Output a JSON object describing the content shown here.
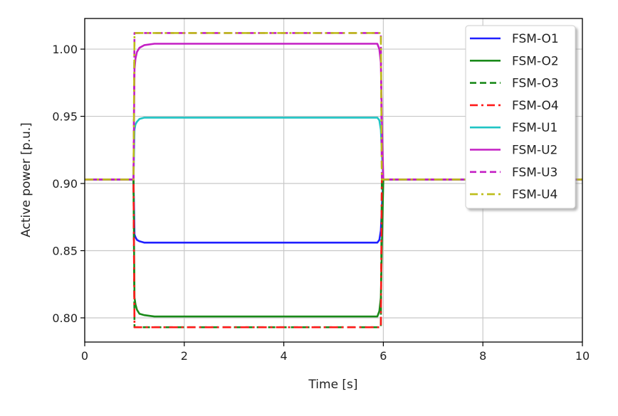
{
  "chart_data": {
    "type": "line",
    "title": "",
    "xlabel": "Time [s]",
    "ylabel": "Active power [p.u.]",
    "xlim": [
      0,
      10
    ],
    "ylim": [
      0.782,
      1.0228
    ],
    "xticks": [
      0,
      2,
      4,
      6,
      8,
      10
    ],
    "xtick_labels": [
      "0",
      "2",
      "4",
      "6",
      "8",
      "10"
    ],
    "yticks": [
      0.8,
      0.85,
      0.9,
      0.95,
      1.0
    ],
    "ytick_labels": [
      "0.80",
      "0.85",
      "0.90",
      "0.95",
      "1.00"
    ],
    "grid": true,
    "legend_position": "top-right",
    "series": [
      {
        "name": "FSM-O1",
        "color": "#1f1fff",
        "style": "solid",
        "x": [
          0,
          0.98,
          1.0,
          1.02,
          1.05,
          1.1,
          1.2,
          1.4,
          5.88,
          5.92,
          5.95,
          5.98,
          6.0,
          10
        ],
        "y": [
          0.903,
          0.903,
          0.862,
          0.86,
          0.858,
          0.857,
          0.856,
          0.856,
          0.856,
          0.858,
          0.865,
          0.89,
          0.903,
          0.903
        ]
      },
      {
        "name": "FSM-O2",
        "color": "#1a8a1a",
        "style": "solid",
        "x": [
          0,
          0.98,
          1.0,
          1.02,
          1.05,
          1.1,
          1.2,
          1.4,
          5.88,
          5.92,
          5.95,
          5.98,
          6.0,
          10
        ],
        "y": [
          0.903,
          0.903,
          0.815,
          0.81,
          0.806,
          0.803,
          0.802,
          0.801,
          0.801,
          0.805,
          0.815,
          0.87,
          0.903,
          0.903
        ]
      },
      {
        "name": "FSM-O3",
        "color": "#1a8a1a",
        "style": "dashed",
        "x": [
          0,
          0.98,
          1.0,
          5.95,
          5.97,
          10
        ],
        "y": [
          0.903,
          0.903,
          0.793,
          0.793,
          0.903,
          0.903
        ]
      },
      {
        "name": "FSM-O4",
        "color": "#ff1a1a",
        "style": "dashdot",
        "x": [
          0,
          0.98,
          1.0,
          5.95,
          5.97,
          10
        ],
        "y": [
          0.903,
          0.903,
          0.793,
          0.793,
          0.903,
          0.903
        ]
      },
      {
        "name": "FSM-U1",
        "color": "#1fc4c4",
        "style": "solid",
        "x": [
          0,
          0.98,
          1.0,
          1.02,
          1.05,
          1.1,
          1.2,
          1.4,
          5.88,
          5.92,
          5.95,
          5.98,
          6.0,
          10
        ],
        "y": [
          0.903,
          0.903,
          0.94,
          0.944,
          0.946,
          0.948,
          0.949,
          0.949,
          0.949,
          0.947,
          0.94,
          0.915,
          0.903,
          0.903
        ]
      },
      {
        "name": "FSM-U2",
        "color": "#c41fc4",
        "style": "solid",
        "x": [
          0,
          0.98,
          1.0,
          1.02,
          1.05,
          1.1,
          1.2,
          1.4,
          5.88,
          5.92,
          5.95,
          5.98,
          6.0,
          10
        ],
        "y": [
          0.903,
          0.903,
          0.985,
          0.993,
          0.998,
          1.001,
          1.003,
          1.004,
          1.004,
          1.0,
          0.99,
          0.93,
          0.903,
          0.903
        ]
      },
      {
        "name": "FSM-U3",
        "color": "#c41fc4",
        "style": "dashed",
        "x": [
          0,
          0.98,
          1.0,
          5.95,
          5.97,
          10
        ],
        "y": [
          0.903,
          0.903,
          1.012,
          1.012,
          0.903,
          0.903
        ]
      },
      {
        "name": "FSM-U4",
        "color": "#bdbd1a",
        "style": "dashdot",
        "x": [
          0,
          0.98,
          1.0,
          5.95,
          5.97,
          10
        ],
        "y": [
          0.903,
          0.903,
          1.012,
          1.012,
          0.903,
          0.903
        ]
      }
    ]
  }
}
